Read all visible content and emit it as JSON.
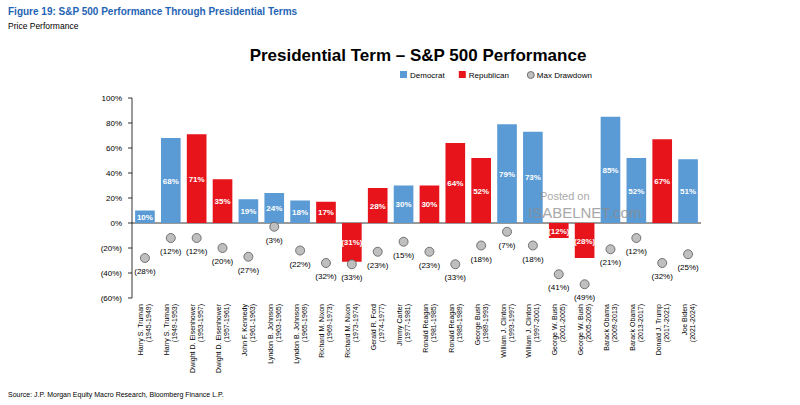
{
  "chart_data": {
    "type": "bar",
    "figure_title": "Figure 19: S&P 500 Performance Through Presidential Terms",
    "figure_subtitle": "Price Performance",
    "title": "Presidential Term – S&P 500 Performance",
    "source": "Source: J.P. Morgan Equity Macro Research, Bloomberg Finance L.P.",
    "annotations": [
      "Posted on",
      "ISABELNET.com"
    ],
    "categories": [
      "Harry S. Truman\n(1945-1949)",
      "Harry S. Truman\n(1949-1953)",
      "Dwight D. Eisenhower\n(1953-1957)",
      "Dwight D. Eisenhower\n(1957-1961)",
      "John F. Kennedy\n(1961-1963)",
      "Lyndon B. Johnson\n(1963-1965)",
      "Lyndon B. Johnson\n(1965-1969)",
      "Richard M. Nixon\n(1969-1973)",
      "Richard M. Nixon\n(1973-1974)",
      "Gerald R. Ford\n(1974-1977)",
      "Jimmy Carter\n(1977-1981)",
      "Ronald Reagan\n(1981-1985)",
      "Ronald Reagan\n(1985-1989)",
      "George Bush\n(1989-1993)",
      "William J. Clinton\n(1993-1997)",
      "William J. Clinton\n(1997-2001)",
      "George W. Bush\n(2001-2005)",
      "George W. Bush\n(2005-2009)",
      "Barack Obama\n(2009-2013)",
      "Barack Obama\n(2013-2017)",
      "Donald J. Trump\n(2017-2021)",
      "Joe Biden\n(2021-2024)"
    ],
    "series": [
      {
        "name": "Democrat",
        "type": "bar",
        "color": "#5b9bd5",
        "values": [
          10,
          68,
          null,
          null,
          19,
          24,
          18,
          null,
          null,
          null,
          30,
          null,
          null,
          null,
          79,
          73,
          null,
          null,
          85,
          52,
          null,
          51
        ],
        "value_labels": [
          "10%",
          "68%",
          null,
          null,
          "19%",
          "24%",
          "18%",
          null,
          null,
          null,
          "30%",
          null,
          null,
          null,
          "79%",
          "73%",
          null,
          null,
          "85%",
          "52%",
          null,
          "51%"
        ]
      },
      {
        "name": "Republican",
        "type": "bar",
        "color": "#e8141c",
        "values": [
          null,
          null,
          71,
          35,
          null,
          null,
          null,
          17,
          -31,
          28,
          null,
          30,
          64,
          52,
          null,
          null,
          -12,
          -28,
          null,
          null,
          67,
          null
        ],
        "value_labels": [
          null,
          null,
          "71%",
          "35%",
          null,
          null,
          null,
          "17%",
          "(31%)",
          "28%",
          null,
          "30%",
          "64%",
          "52%",
          null,
          null,
          "(12%)",
          "(28%)",
          null,
          null,
          "67%",
          null
        ]
      },
      {
        "name": "Max Drawdown",
        "type": "scatter",
        "marker": "circle",
        "color": "#bfbfbf",
        "values": [
          -28,
          -12,
          -12,
          -20,
          -27,
          -3,
          -22,
          -32,
          -33,
          -23,
          -15,
          -23,
          -33,
          -18,
          -7,
          -18,
          -41,
          -49,
          -21,
          -12,
          -32,
          -25
        ],
        "value_labels": [
          "(28%)",
          "(12%)",
          "(12%)",
          "(20%)",
          "(27%)",
          "(3%)",
          "(22%)",
          "(32%)",
          "(33%)",
          "(23%)",
          "(15%)",
          "(23%)",
          "(33%)",
          "(18%)",
          "(7%)",
          "(18%)",
          "(41%)",
          "(49%)",
          "(21%)",
          "(12%)",
          "(32%)",
          "(25%)"
        ]
      }
    ],
    "ylim": [
      -60,
      100
    ],
    "yticks": [
      {
        "value": 100,
        "label": "100%"
      },
      {
        "value": 80,
        "label": "80%"
      },
      {
        "value": 60,
        "label": "60%"
      },
      {
        "value": 40,
        "label": "40%"
      },
      {
        "value": 20,
        "label": "20%"
      },
      {
        "value": 0,
        "label": "0%"
      },
      {
        "value": -20,
        "label": "(20%)"
      },
      {
        "value": -40,
        "label": "(40%)"
      },
      {
        "value": -60,
        "label": "(60%)"
      }
    ],
    "grid": false,
    "legend": "top",
    "data_labels": true
  }
}
